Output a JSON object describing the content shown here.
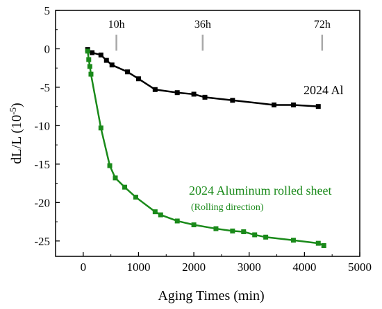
{
  "chart_data": {
    "type": "line",
    "xlabel": "Aging Times (min)",
    "ylabel_main": "dL/L (10",
    "ylabel_exp": "-5",
    "ylabel_close": ")",
    "xlim": [
      -500,
      5000
    ],
    "ylim": [
      -27,
      5
    ],
    "x_ticks": [
      0,
      1000,
      2000,
      3000,
      4000,
      5000
    ],
    "y_ticks": [
      5,
      0,
      -5,
      -10,
      -15,
      -20,
      -25
    ],
    "grid": false,
    "markers": [
      {
        "label": "10h",
        "x": 600
      },
      {
        "label": "36h",
        "x": 2160
      },
      {
        "label": "72h",
        "x": 4320
      }
    ],
    "series": [
      {
        "name": "2024 Al",
        "color": "#000000",
        "x": [
          80,
          160,
          320,
          420,
          520,
          800,
          1000,
          1300,
          1700,
          2000,
          2200,
          2700,
          3450,
          3800,
          4250
        ],
        "y": [
          -0.1,
          -0.5,
          -0.8,
          -1.5,
          -2.1,
          -3.0,
          -3.9,
          -5.3,
          -5.7,
          -5.9,
          -6.3,
          -6.7,
          -7.3,
          -7.3,
          -7.5
        ]
      },
      {
        "name": "2024 Aluminum rolled sheet",
        "sub_label": "(Rolling direction)",
        "color": "#1a8a1a",
        "x": [
          80,
          100,
          120,
          140,
          320,
          480,
          580,
          750,
          950,
          1300,
          1400,
          1700,
          2000,
          2400,
          2700,
          2900,
          3100,
          3300,
          3800,
          4250,
          4350
        ],
        "y": [
          -0.3,
          -1.4,
          -2.3,
          -3.3,
          -10.3,
          -15.2,
          -16.8,
          -18.0,
          -19.3,
          -21.2,
          -21.6,
          -22.4,
          -22.9,
          -23.4,
          -23.7,
          -23.8,
          -24.2,
          -24.5,
          -24.9,
          -25.3,
          -25.6
        ]
      }
    ]
  }
}
